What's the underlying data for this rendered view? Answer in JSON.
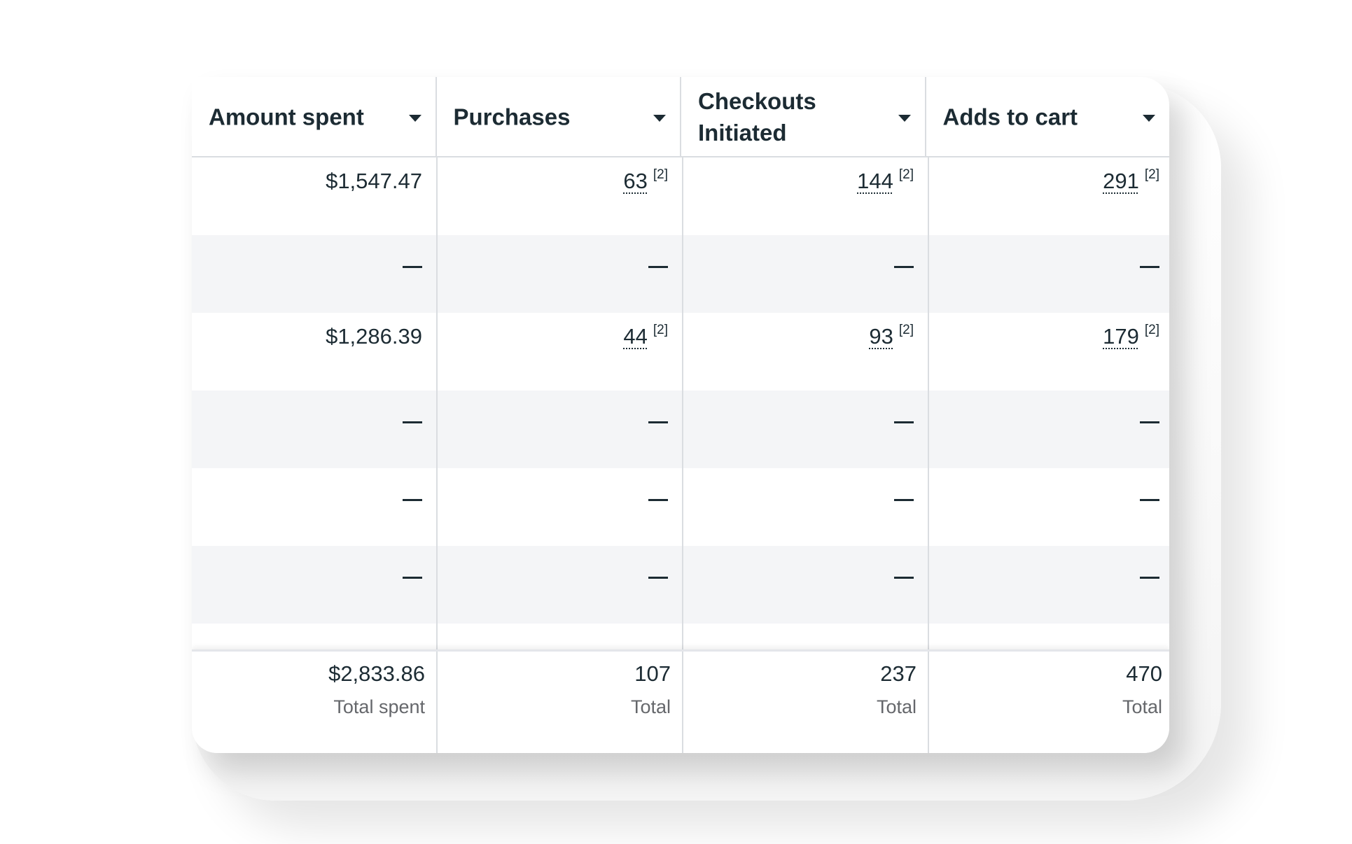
{
  "columns": [
    {
      "label": "Amount spent"
    },
    {
      "label": "Purchases"
    },
    {
      "label": "Checkouts Initiated"
    },
    {
      "label": "Adds to cart"
    }
  ],
  "rows": [
    [
      "$1,547.47",
      {
        "v": "63",
        "note": "[2]"
      },
      {
        "v": "144",
        "note": "[2]"
      },
      {
        "v": "291",
        "note": "[2]"
      }
    ],
    [
      "—",
      "—",
      "—",
      "—"
    ],
    [
      "$1,286.39",
      {
        "v": "44",
        "note": "[2]"
      },
      {
        "v": "93",
        "note": "[2]"
      },
      {
        "v": "179",
        "note": "[2]"
      }
    ],
    [
      "—",
      "—",
      "—",
      "—"
    ],
    [
      "—",
      "—",
      "—",
      "—"
    ],
    [
      "—",
      "—",
      "—",
      "—"
    ],
    [
      "—",
      "—",
      "—",
      "—"
    ]
  ],
  "totals": [
    {
      "value": "$2,833.86",
      "label": "Total spent"
    },
    {
      "value": "107",
      "label": "Total"
    },
    {
      "value": "237",
      "label": "Total"
    },
    {
      "value": "470",
      "label": "Total"
    }
  ]
}
